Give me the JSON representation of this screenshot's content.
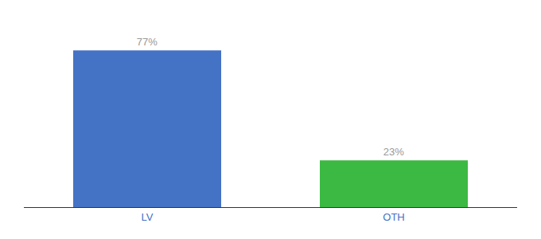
{
  "chart_data": {
    "type": "bar",
    "categories": [
      "LV",
      "OTH"
    ],
    "values": [
      77,
      23
    ],
    "value_labels": [
      "77%",
      "23%"
    ],
    "colors": [
      "#4472c4",
      "#3cb943"
    ],
    "ylim": [
      0,
      90
    ],
    "data_labels": true,
    "tick_labels": "x",
    "grid": false
  }
}
